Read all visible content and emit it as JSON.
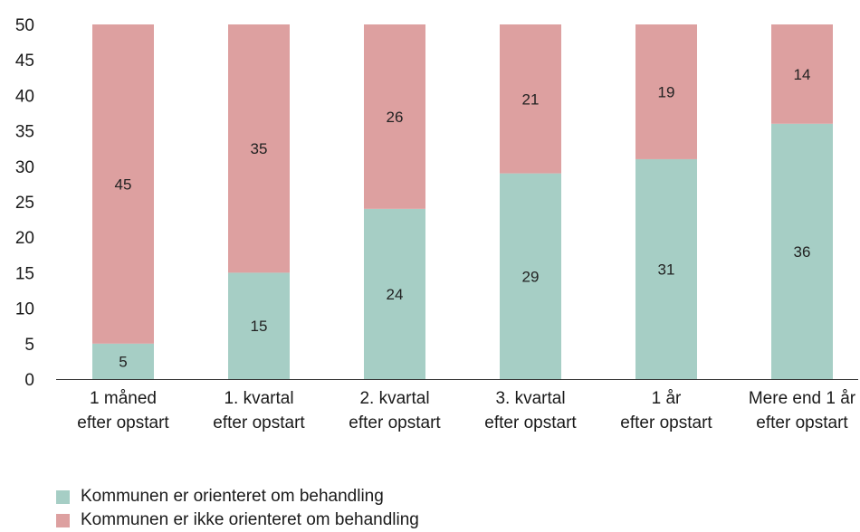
{
  "chart_data": {
    "type": "bar",
    "stacked": true,
    "categories": [
      [
        "1 måned",
        "efter opstart"
      ],
      [
        "1. kvartal",
        "efter opstart"
      ],
      [
        "2. kvartal",
        "efter opstart"
      ],
      [
        "3. kvartal",
        "efter opstart"
      ],
      [
        "1 år",
        "efter opstart"
      ],
      [
        "Mere end 1 år",
        "efter opstart"
      ]
    ],
    "series": [
      {
        "name": "Kommunen er orienteret om behandling",
        "color": "#a6cec5",
        "values": [
          5,
          15,
          24,
          29,
          31,
          36
        ]
      },
      {
        "name": "Kommunen er ikke orienteret om behandling",
        "color": "#dda0a0",
        "values": [
          45,
          35,
          26,
          21,
          19,
          14
        ]
      }
    ],
    "ylim": [
      0,
      50
    ],
    "yticks": [
      0,
      5,
      10,
      15,
      20,
      25,
      30,
      35,
      40,
      45,
      50
    ],
    "grid": false,
    "legend_position": "bottom-left"
  }
}
